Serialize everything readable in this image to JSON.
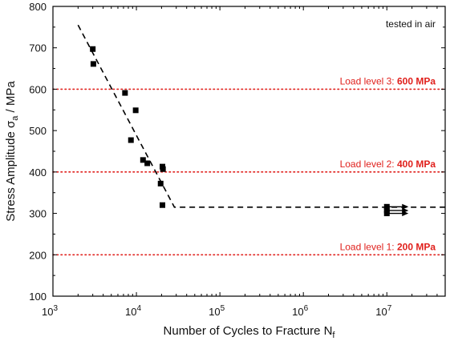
{
  "chart_data": {
    "type": "scatter",
    "xlabel": "Number of Cycles to Fracture N",
    "xlabel_sub": "f",
    "ylabel": "Stress Amplitude σ",
    "ylabel_sub": "a",
    "ylabel_suffix": " / MPa",
    "xscale": "log",
    "xlim": [
      1000,
      50000000
    ],
    "ylim": [
      100,
      800
    ],
    "x_ticks": [
      {
        "value": 1000,
        "base": "10",
        "exp": "3"
      },
      {
        "value": 10000,
        "base": "10",
        "exp": "4"
      },
      {
        "value": 100000,
        "base": "10",
        "exp": "5"
      },
      {
        "value": 1000000,
        "base": "10",
        "exp": "6"
      },
      {
        "value": 10000000,
        "base": "10",
        "exp": "7"
      }
    ],
    "y_ticks": [
      100,
      200,
      300,
      400,
      500,
      600,
      700,
      800
    ],
    "annotation": "tested in air",
    "series": [
      {
        "marker": "square",
        "color": "#000000",
        "points": [
          {
            "x": 3000,
            "y": 697
          },
          {
            "x": 3050,
            "y": 661
          },
          {
            "x": 7300,
            "y": 591
          },
          {
            "x": 9800,
            "y": 549
          },
          {
            "x": 8600,
            "y": 477
          },
          {
            "x": 12000,
            "y": 429
          },
          {
            "x": 13500,
            "y": 421
          },
          {
            "x": 20500,
            "y": 413
          },
          {
            "x": 20800,
            "y": 407
          },
          {
            "x": 19500,
            "y": 372
          },
          {
            "x": 20500,
            "y": 320
          },
          {
            "x": 10000000,
            "y": 316
          },
          {
            "x": 10000000,
            "y": 307
          },
          {
            "x": 10000000,
            "y": 300
          }
        ],
        "runouts": [
          {
            "x": 10000000,
            "y": 316
          },
          {
            "x": 10000000,
            "y": 307
          },
          {
            "x": 10000000,
            "y": 300
          }
        ]
      }
    ],
    "fit_line": {
      "style": "dashed",
      "color": "#000000",
      "points": [
        {
          "x": 2000,
          "y": 755
        },
        {
          "x": 28500,
          "y": 315
        },
        {
          "x": 50000000,
          "y": 315
        }
      ]
    },
    "reference_lines": [
      {
        "y": 600,
        "label": "Load level 3: ",
        "value_label": "600 MPa",
        "color": "#e0201c",
        "style": "dotted"
      },
      {
        "y": 400,
        "label": "Load level 2: ",
        "value_label": "400 MPa",
        "color": "#e0201c",
        "style": "dotted"
      },
      {
        "y": 200,
        "label": "Load level 1: ",
        "value_label": "200 MPa",
        "color": "#e0201c",
        "style": "dotted"
      }
    ],
    "grid": false,
    "legend": "none"
  }
}
